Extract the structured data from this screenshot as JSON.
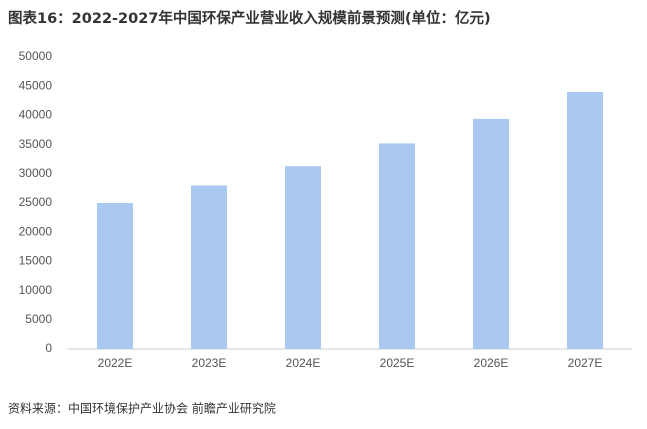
{
  "chart_data": {
    "type": "bar",
    "title": "图表16：2022-2027年中国环保产业营业收入规模前景预测(单位：亿元)",
    "source": "资料来源：中国环境保护产业协会 前瞻产业研究院",
    "categories": [
      "2022E",
      "2023E",
      "2024E",
      "2025E",
      "2026E",
      "2027E"
    ],
    "values": [
      25000,
      28000,
      31300,
      35200,
      39400,
      44000
    ],
    "color": "#a9c9f1",
    "ylim": [
      0,
      50000
    ],
    "yticks": [
      0,
      5000,
      10000,
      15000,
      20000,
      25000,
      30000,
      35000,
      40000,
      45000,
      50000
    ],
    "grid": false
  }
}
